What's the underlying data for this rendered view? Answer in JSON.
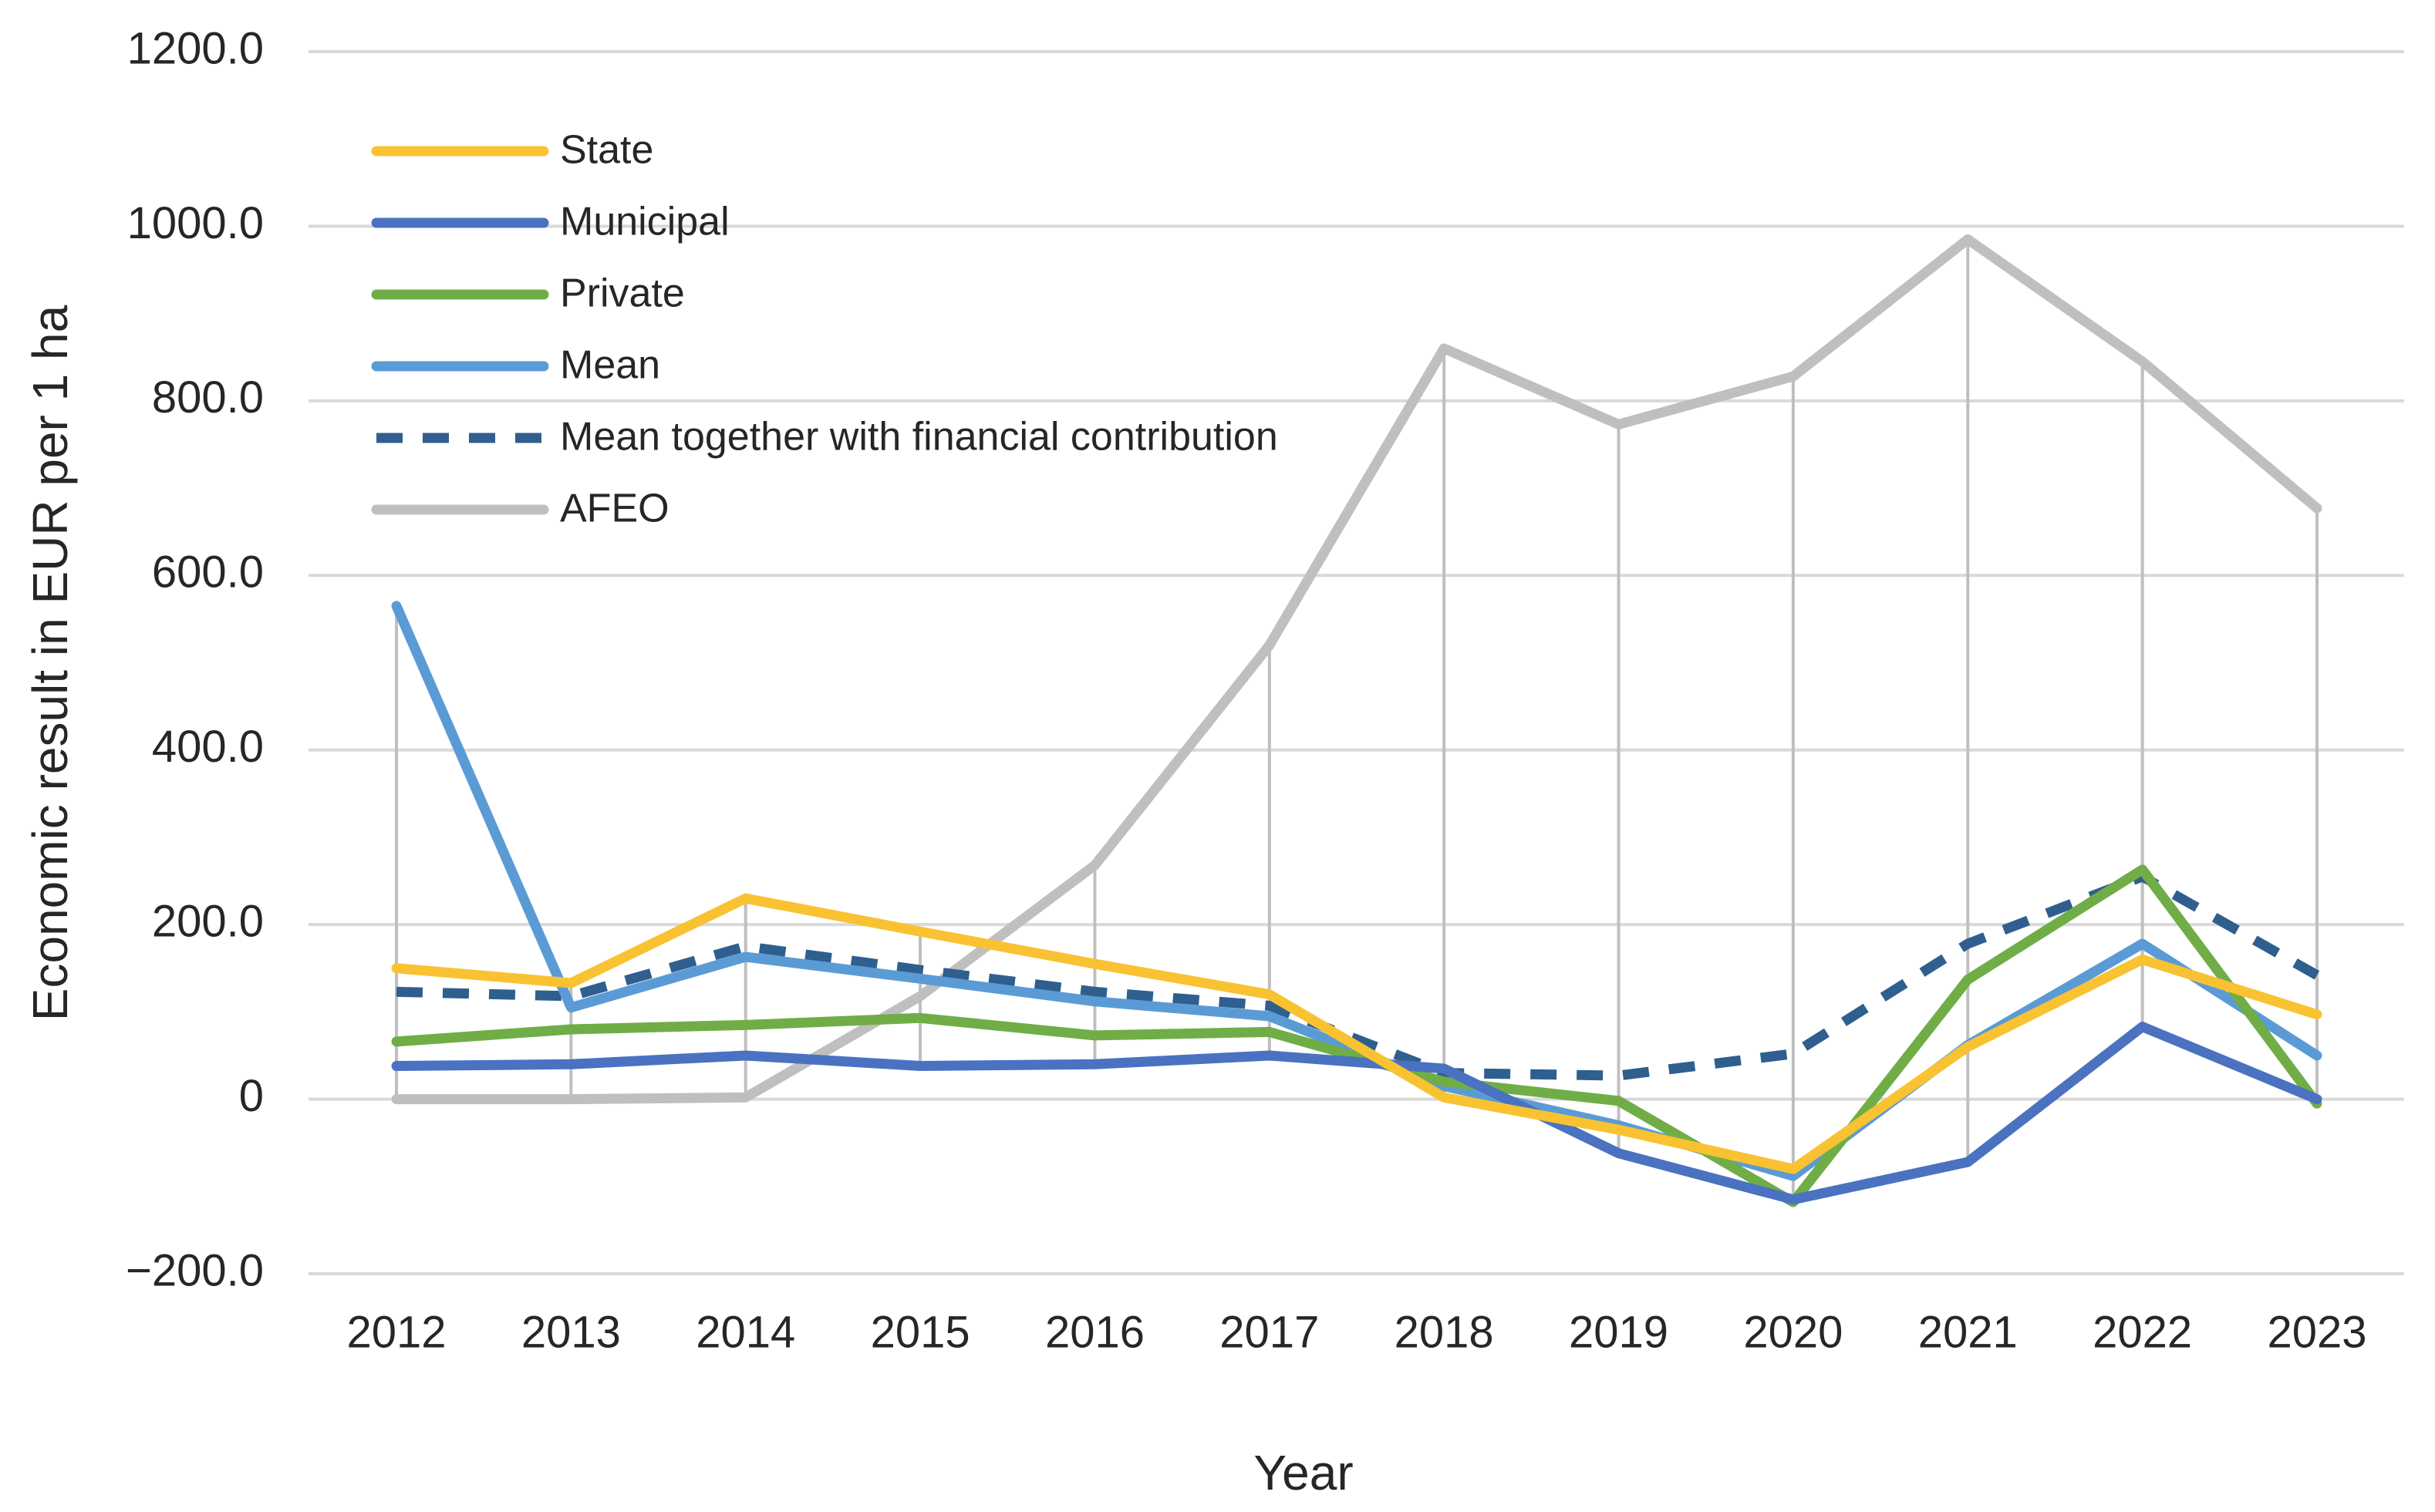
{
  "chart_data": {
    "type": "line",
    "x_label": "Year",
    "y_label": "Economic result in EUR per 1 ha",
    "categories": [
      "2012",
      "2013",
      "2014",
      "2015",
      "2016",
      "2017",
      "2018",
      "2019",
      "2020",
      "2021",
      "2022",
      "2023"
    ],
    "series": [
      {
        "name": "State",
        "color": "#f9c232",
        "dashed": false,
        "values": [
          150,
          133,
          230,
          192,
          155,
          120,
          2,
          -35,
          -80,
          60,
          160,
          97
        ]
      },
      {
        "name": "Municipal",
        "color": "#4a72c0",
        "dashed": false,
        "values": [
          38,
          40,
          50,
          38,
          40,
          50,
          35,
          -62,
          -115,
          -72,
          83,
          0
        ]
      },
      {
        "name": "Private",
        "color": "#70ad47",
        "dashed": false,
        "values": [
          66,
          80,
          85,
          93,
          73,
          77,
          20,
          -2,
          -118,
          137,
          263,
          -5
        ]
      },
      {
        "name": "Mean",
        "color": "#5b9bd5",
        "dashed": false,
        "values": [
          565,
          105,
          163,
          138,
          112,
          95,
          15,
          -30,
          -88,
          62,
          178,
          50
        ]
      },
      {
        "name": "Mean together with financial contribution",
        "color": "#2f5f8f",
        "dashed": true,
        "values": [
          123,
          118,
          175,
          148,
          123,
          107,
          30,
          27,
          52,
          178,
          255,
          142
        ]
      },
      {
        "name": "AFEO",
        "color": "#bfbfbf",
        "dashed": false,
        "values": [
          0,
          0,
          2,
          118,
          268,
          520,
          860,
          773,
          828,
          985,
          845,
          677
        ]
      }
    ],
    "ylim": [
      -200,
      1200
    ],
    "yticks": [
      {
        "value": -200,
        "label": "−200.0"
      },
      0,
      {
        "value": 200,
        "label": "200.0"
      },
      {
        "value": 400,
        "label": "400.0"
      },
      {
        "value": 600,
        "label": "600.0"
      },
      {
        "value": 800,
        "label": "800.0"
      },
      {
        "value": 1000,
        "label": "1000.0"
      },
      {
        "value": 1200,
        "label": "1200.0"
      }
    ],
    "grid": true,
    "high_low_lines": true,
    "legend": "upper left"
  }
}
